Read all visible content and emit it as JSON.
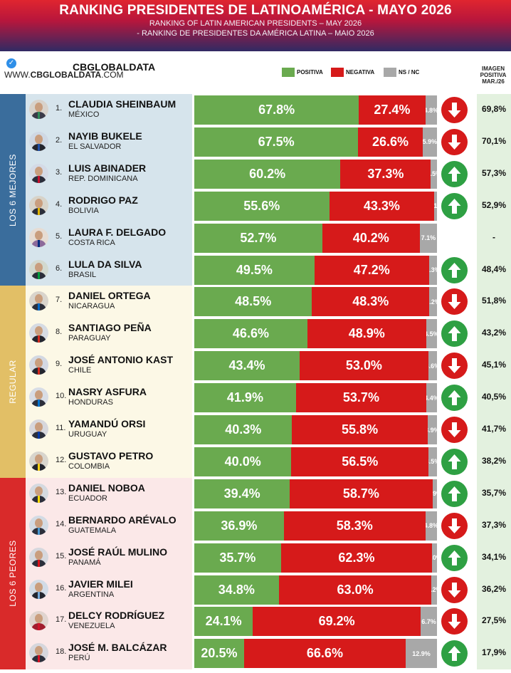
{
  "header": {
    "title": "RANKING PRESIDENTES DE LATINOAMÉRICA - MAYO 2026",
    "subtitle_en": "RANKING OF LATIN AMERICAN PRESIDENTS – MAY 2026",
    "subtitle_pt": "- RANKING DE PRESIDENTES DA AMÉRICA LATINA – MAIO 2026"
  },
  "brand": {
    "name": "CBGLOBALDATA",
    "site_prefix": "WWW.",
    "site_bold": "CBGLOBALDATA",
    "site_suffix": ".COM"
  },
  "legend": {
    "positive": "POSITIVA",
    "negative": "NEGATIVA",
    "nsnc": "NS / NC"
  },
  "column_header": {
    "line1": "IMAGEN",
    "line2": "POSITIVA",
    "line3": "MAR./26"
  },
  "groups": [
    {
      "label": "LOS 6 MEJORES",
      "color": "#3a6d9c",
      "bg": "#d6e4ec"
    },
    {
      "label": "REGULAR",
      "color": "#e2bf66",
      "bg": "#fcf8e6"
    },
    {
      "label": "LOS 6 PEORES",
      "color": "#d92a2a",
      "bg": "#fbe8e8"
    }
  ],
  "colors": {
    "positive": "#6aaa4f",
    "negative": "#d61a1a",
    "nsnc": "#a8a8a8",
    "arrow_up": "#2ea043",
    "arrow_down": "#d61a1a"
  },
  "chart_data": {
    "type": "bar",
    "stacked": true,
    "orientation": "horizontal",
    "categories": [
      "CLAUDIA SHEINBAUM",
      "NAYIB BUKELE",
      "LUIS ABINADER",
      "RODRIGO PAZ",
      "LAURA F. DELGADO",
      "LULA DA SILVA",
      "DANIEL ORTEGA",
      "SANTIAGO PEÑA",
      "JOSÉ ANTONIO KAST",
      "NASRY ASFURA",
      "YAMANDÚ ORSI",
      "GUSTAVO PETRO",
      "DANIEL NOBOA",
      "BERNARDO ARÉVALO",
      "JOSÉ RAÚL MULINO",
      "JAVIER MILEI",
      "DELCY RODRÍGUEZ",
      "JOSÉ M. BALCÁZAR"
    ],
    "series": [
      {
        "name": "POSITIVA",
        "values": [
          67.8,
          67.5,
          60.2,
          55.6,
          52.7,
          49.5,
          48.5,
          46.6,
          43.4,
          41.9,
          40.3,
          40.0,
          39.4,
          36.9,
          35.7,
          34.8,
          24.1,
          20.5
        ]
      },
      {
        "name": "NEGATIVA",
        "values": [
          27.4,
          26.6,
          37.3,
          43.3,
          40.2,
          47.2,
          48.3,
          48.9,
          53.0,
          53.7,
          55.8,
          56.5,
          58.7,
          58.3,
          62.3,
          63.0,
          69.2,
          66.6
        ]
      },
      {
        "name": "NS / NC",
        "values": [
          4.8,
          5.9,
          2.5,
          1.1,
          7.1,
          3.3,
          3.2,
          4.5,
          3.6,
          4.4,
          3.9,
          3.5,
          1.9,
          4.8,
          2.0,
          2.2,
          6.7,
          12.9
        ]
      }
    ]
  },
  "presidents": [
    {
      "rank": "1.",
      "name": "CLAUDIA SHEINBAUM",
      "country": "MÉXICO",
      "pos": "67.8%",
      "neg": "27.4%",
      "nsnc": "4.8%",
      "trend": "down",
      "prev": "69,8%",
      "avatar_bg": "#d8d2cb",
      "sash": "#2e8b57",
      "suit": "#3a3a48",
      "group": 0
    },
    {
      "rank": "2.",
      "name": "NAYIB BUKELE",
      "country": "EL SALVADOR",
      "pos": "67.5%",
      "neg": "26.6%",
      "nsnc": "5.9%",
      "trend": "down",
      "prev": "70,1%",
      "avatar_bg": "#cfd8e4",
      "sash": "#1f4fa8",
      "suit": "#23252e",
      "group": 0
    },
    {
      "rank": "3.",
      "name": "LUIS ABINADER",
      "country": "REP. DOMINICANA",
      "pos": "60.2%",
      "neg": "37.3%",
      "nsnc": "2.5%",
      "trend": "up",
      "prev": "57,3%",
      "avatar_bg": "#d4dae6",
      "sash": "#c8102e",
      "suit": "#2a2d3a",
      "group": 0
    },
    {
      "rank": "4.",
      "name": "RODRIGO PAZ",
      "country": "BOLIVIA",
      "pos": "55.6%",
      "neg": "43.3%",
      "nsnc": "1.1%",
      "trend": "up",
      "prev": "52,9%",
      "avatar_bg": "#d7d3c9",
      "sash": "#e0b400",
      "suit": "#2b2e3a",
      "group": 0
    },
    {
      "rank": "5.",
      "name": "LAURA F. DELGADO",
      "country": "COSTA RICA",
      "pos": "52.7%",
      "neg": "40.2%",
      "nsnc": "7.1%",
      "trend": "none",
      "prev": "-",
      "avatar_bg": "#e6dcd3",
      "sash": "#002b7f",
      "suit": "#8c6a9a",
      "group": 0
    },
    {
      "rank": "6.",
      "name": "LULA DA SILVA",
      "country": "BRASIL",
      "pos": "49.5%",
      "neg": "47.2%",
      "nsnc": "3.3%",
      "trend": "up",
      "prev": "48,4%",
      "avatar_bg": "#d2d9cf",
      "sash": "#009c3b",
      "suit": "#2b2e3a",
      "group": 0
    },
    {
      "rank": "7.",
      "name": "DANIEL ORTEGA",
      "country": "NICARAGUA",
      "pos": "48.5%",
      "neg": "48.3%",
      "nsnc": "3.2%",
      "trend": "down",
      "prev": "51,8%",
      "avatar_bg": "#d9d4cc",
      "sash": "#0067c6",
      "suit": "#2b2e3a",
      "group": 1
    },
    {
      "rank": "8.",
      "name": "SANTIAGO PEÑA",
      "country": "PARAGUAY",
      "pos": "46.6%",
      "neg": "48.9%",
      "nsnc": "4.5%",
      "trend": "up",
      "prev": "43,2%",
      "avatar_bg": "#d6dbe3",
      "sash": "#d52b1e",
      "suit": "#23252e",
      "group": 1
    },
    {
      "rank": "9.",
      "name": "JOSÉ ANTONIO KAST",
      "country": "CHILE",
      "pos": "43.4%",
      "neg": "53.0%",
      "nsnc": "3.6%",
      "trend": "down",
      "prev": "45,1%",
      "avatar_bg": "#d3d8e2",
      "sash": "#d52b1e",
      "suit": "#23252e",
      "group": 1
    },
    {
      "rank": "10.",
      "name": "NASRY ASFURA",
      "country": "HONDURAS",
      "pos": "41.9%",
      "neg": "53.7%",
      "nsnc": "4.4%",
      "trend": "up",
      "prev": "40,5%",
      "avatar_bg": "#d8dde6",
      "sash": "#0073cf",
      "suit": "#2b2e3a",
      "group": 1
    },
    {
      "rank": "11.",
      "name": "YAMANDÚ ORSI",
      "country": "URUGUAY",
      "pos": "40.3%",
      "neg": "55.8%",
      "nsnc": "3.9%",
      "trend": "down",
      "prev": "41,7%",
      "avatar_bg": "#d7d7dc",
      "sash": "#0038a8",
      "suit": "#2b2e3a",
      "group": 1
    },
    {
      "rank": "12.",
      "name": "GUSTAVO PETRO",
      "country": "COLOMBIA",
      "pos": "40.0%",
      "neg": "56.5%",
      "nsnc": "3.5%",
      "trend": "up",
      "prev": "38,2%",
      "avatar_bg": "#d8d5cd",
      "sash": "#fcd116",
      "suit": "#23252e",
      "group": 1
    },
    {
      "rank": "13.",
      "name": "DANIEL NOBOA",
      "country": "ECUADOR",
      "pos": "39.4%",
      "neg": "58.7%",
      "nsnc": "1.9%",
      "trend": "up",
      "prev": "35,7%",
      "avatar_bg": "#d5d9df",
      "sash": "#ffdd00",
      "suit": "#2b2e3a",
      "group": 2
    },
    {
      "rank": "14.",
      "name": "BERNARDO ARÉVALO",
      "country": "GUATEMALA",
      "pos": "36.9%",
      "neg": "58.3%",
      "nsnc": "4.8%",
      "trend": "down",
      "prev": "37,3%",
      "avatar_bg": "#d3dbe4",
      "sash": "#4997d0",
      "suit": "#2b2e3a",
      "group": 2
    },
    {
      "rank": "15.",
      "name": "JOSÉ RAÚL MULINO",
      "country": "PANAMÁ",
      "pos": "35.7%",
      "neg": "62.3%",
      "nsnc": "2.0%",
      "trend": "up",
      "prev": "34,1%",
      "avatar_bg": "#d6d8de",
      "sash": "#da121a",
      "suit": "#2b2e3a",
      "group": 2
    },
    {
      "rank": "16.",
      "name": "JAVIER MILEI",
      "country": "ARGENTINA",
      "pos": "34.8%",
      "neg": "63.0%",
      "nsnc": "2.2%",
      "trend": "down",
      "prev": "36,2%",
      "avatar_bg": "#d2dbe6",
      "sash": "#75aadb",
      "suit": "#23252e",
      "group": 2
    },
    {
      "rank": "17.",
      "name": "DELCY RODRÍGUEZ",
      "country": "VENEZUELA",
      "pos": "24.1%",
      "neg": "69.2%",
      "nsnc": "6.7%",
      "trend": "down",
      "prev": "27,5%",
      "avatar_bg": "#e0d4cf",
      "sash": "#cf142b",
      "suit": "#a11d2e",
      "group": 2
    },
    {
      "rank": "18.",
      "name": "JOSÉ M. BALCÁZAR",
      "country": "PERÚ",
      "pos": "20.5%",
      "neg": "66.6%",
      "nsnc": "12.9%",
      "trend": "up",
      "prev": "17,9%",
      "avatar_bg": "#d6d6dc",
      "sash": "#d91023",
      "suit": "#2b2e3a",
      "group": 2
    }
  ]
}
